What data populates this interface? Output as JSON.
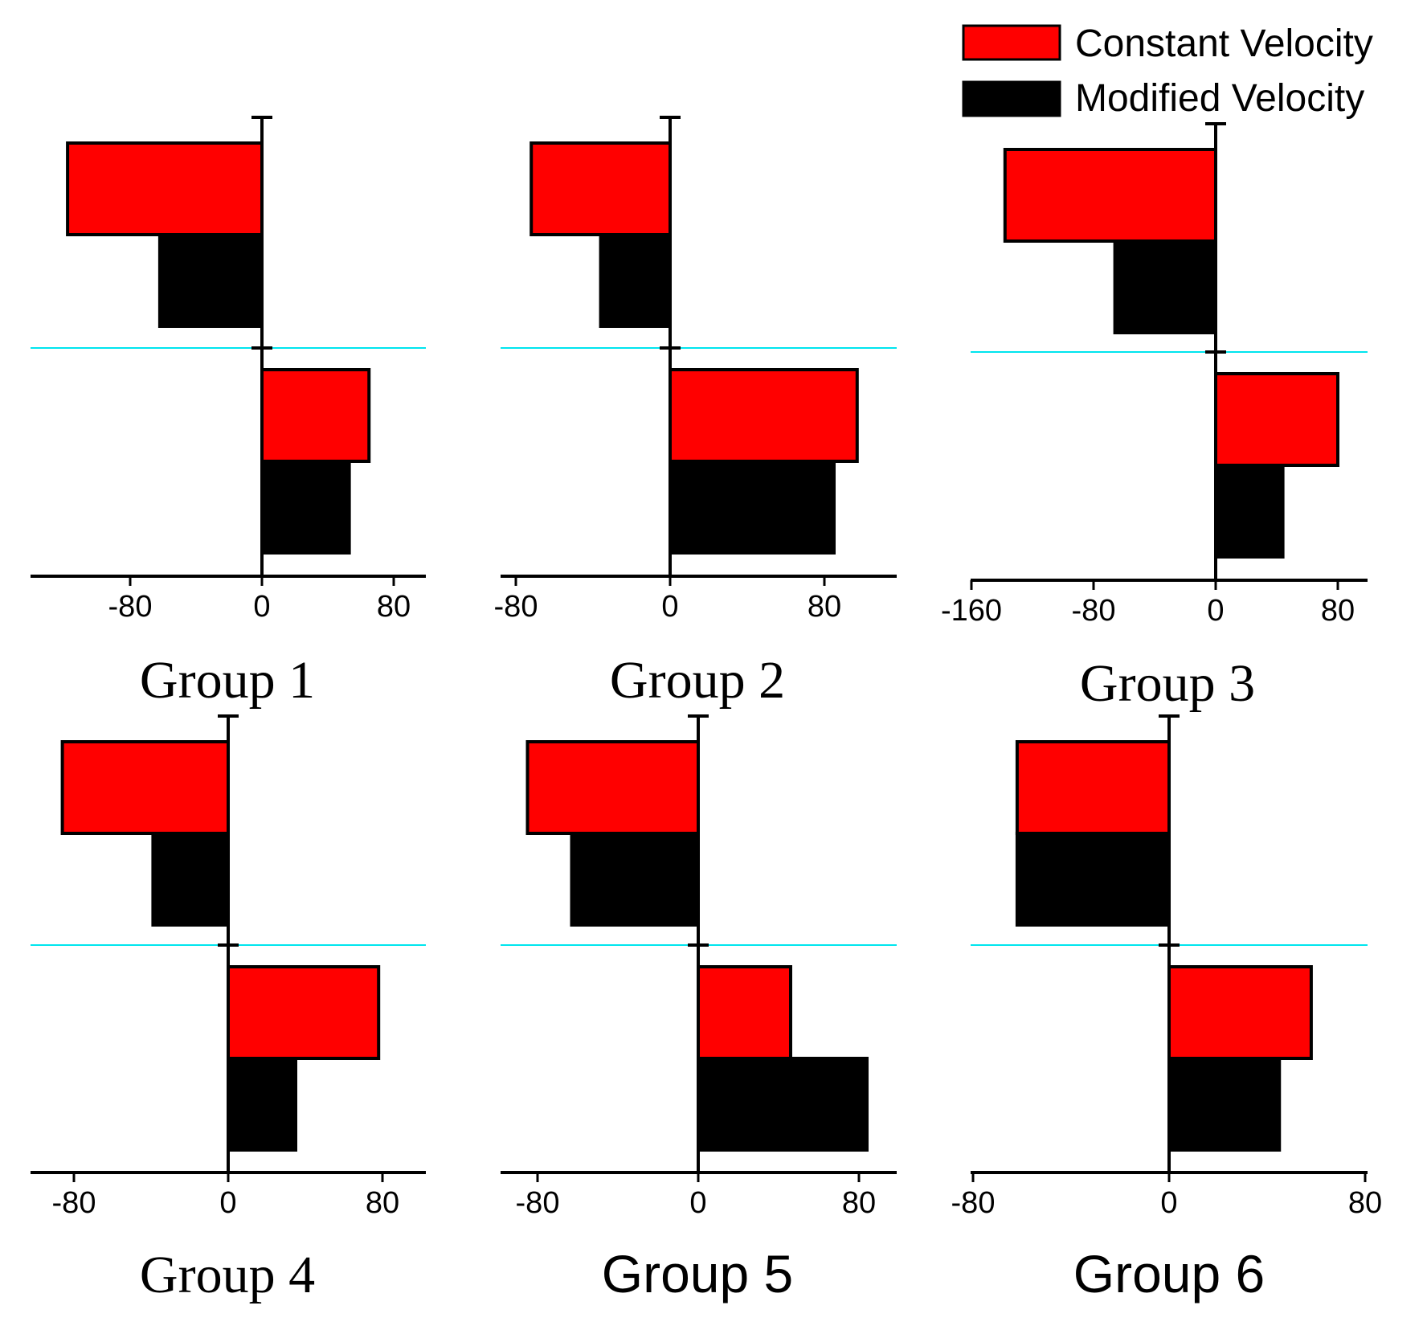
{
  "legend": {
    "items": [
      {
        "label": "Constant Velocity",
        "color": "#ff0000"
      },
      {
        "label": "Modified Velocity",
        "color": "#000000"
      }
    ]
  },
  "colors": {
    "zero_line": "#00e5ee",
    "axis": "#000000"
  },
  "chart_data": [
    {
      "type": "bar",
      "orientation": "horizontal",
      "title": "Group 1",
      "categories": [
        "upper",
        "lower"
      ],
      "series": [
        {
          "name": "Constant Velocity",
          "values": [
            -118,
            65
          ]
        },
        {
          "name": "Modified Velocity",
          "values": [
            -62,
            53
          ]
        }
      ],
      "xlim": [
        -140,
        100
      ],
      "xticks": [
        -80,
        0,
        80
      ],
      "xtick_labels": [
        "-80",
        "0",
        "80"
      ]
    },
    {
      "type": "bar",
      "orientation": "horizontal",
      "title": "Group 2",
      "categories": [
        "upper",
        "lower"
      ],
      "series": [
        {
          "name": "Constant Velocity",
          "values": [
            -72,
            97
          ]
        },
        {
          "name": "Modified Velocity",
          "values": [
            -36,
            85
          ]
        }
      ],
      "xlim": [
        -90,
        120
      ],
      "xticks": [
        -80,
        0,
        80
      ],
      "xtick_labels": [
        "-80",
        "0",
        "80"
      ]
    },
    {
      "type": "bar",
      "orientation": "horizontal",
      "title": "Group 3",
      "categories": [
        "upper",
        "lower"
      ],
      "series": [
        {
          "name": "Constant Velocity",
          "values": [
            -138,
            80
          ]
        },
        {
          "name": "Modified Velocity",
          "values": [
            -66,
            44
          ]
        }
      ],
      "xlim": [
        -160,
        100
      ],
      "xticks": [
        -160,
        -80,
        0,
        80
      ],
      "xtick_labels": [
        "-160",
        "-80",
        "0",
        "80"
      ]
    },
    {
      "type": "bar",
      "orientation": "horizontal",
      "title": "Group 4",
      "categories": [
        "upper",
        "lower"
      ],
      "series": [
        {
          "name": "Constant Velocity",
          "values": [
            -86,
            78
          ]
        },
        {
          "name": "Modified Velocity",
          "values": [
            -39,
            35
          ]
        }
      ],
      "xlim": [
        -100,
        100
      ],
      "xticks": [
        -80,
        0,
        80
      ],
      "xtick_labels": [
        "-80",
        "0",
        "80"
      ]
    },
    {
      "type": "bar",
      "orientation": "horizontal",
      "title": "Group 5",
      "categories": [
        "upper",
        "lower"
      ],
      "series": [
        {
          "name": "Constant Velocity",
          "values": [
            -85,
            46
          ]
        },
        {
          "name": "Modified Velocity",
          "values": [
            -63,
            84
          ]
        }
      ],
      "xlim": [
        -100,
        100
      ],
      "xticks": [
        -80,
        0,
        80
      ],
      "xtick_labels": [
        "-80",
        "0",
        "80"
      ]
    },
    {
      "type": "bar",
      "orientation": "horizontal",
      "title": "Group 6",
      "categories": [
        "upper",
        "lower"
      ],
      "series": [
        {
          "name": "Constant Velocity",
          "values": [
            -62,
            58
          ]
        },
        {
          "name": "Modified Velocity",
          "values": [
            -62,
            45
          ]
        }
      ],
      "xlim": [
        -80,
        80
      ],
      "xticks": [
        -80,
        0,
        80
      ],
      "xtick_labels": [
        "-80",
        "0",
        "80"
      ]
    }
  ]
}
